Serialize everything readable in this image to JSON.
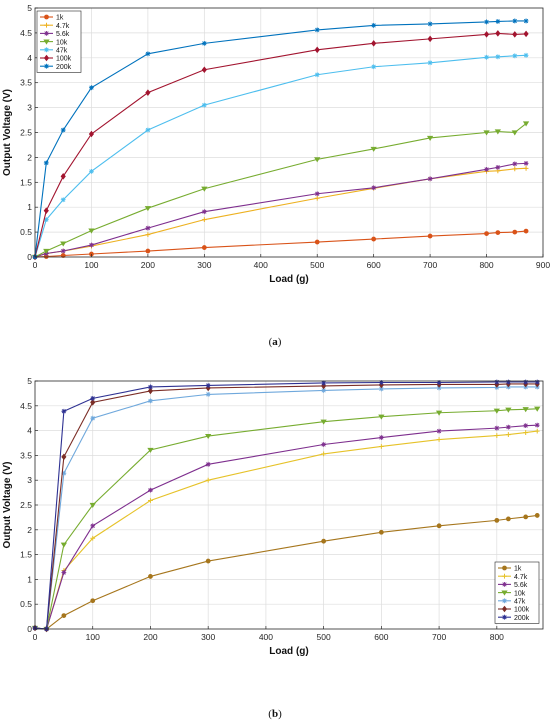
{
  "panels": [
    {
      "label_prefix": "(",
      "label_letter": "a",
      "label_suffix": ")"
    },
    {
      "label_prefix": "(",
      "label_letter": "b",
      "label_suffix": ")"
    }
  ],
  "chart_data": [
    {
      "type": "line",
      "xlabel": "Load (g)",
      "ylabel": "Output Voltage (V)",
      "xlim": [
        0,
        900
      ],
      "ylim": [
        0,
        5
      ],
      "xticks": [
        "0",
        "100",
        "200",
        "300",
        "400",
        "500",
        "600",
        "700",
        "800",
        "900"
      ],
      "yticks": [
        "0",
        "0.5",
        "1",
        "1.5",
        "2",
        "2.5",
        "3",
        "3.5",
        "4",
        "4.5",
        "5"
      ],
      "grid": true,
      "legend_position": "top-left",
      "x": [
        0,
        20,
        50,
        100,
        200,
        300,
        500,
        600,
        700,
        800,
        820,
        850,
        870
      ],
      "series": [
        {
          "name": "1k",
          "color": "#d95319",
          "marker": "circle",
          "values": [
            0,
            0.01,
            0.03,
            0.06,
            0.12,
            0.19,
            0.3,
            0.36,
            0.42,
            0.47,
            0.49,
            0.5,
            0.52
          ]
        },
        {
          "name": "4.7k",
          "color": "#edb120",
          "marker": "plus",
          "values": [
            0,
            0.07,
            0.12,
            0.22,
            0.45,
            0.75,
            1.18,
            1.38,
            1.57,
            1.72,
            1.73,
            1.77,
            1.78
          ]
        },
        {
          "name": "5.6k",
          "color": "#7e2f8e",
          "marker": "asterisk",
          "values": [
            0,
            0.07,
            0.12,
            0.24,
            0.58,
            0.91,
            1.27,
            1.39,
            1.57,
            1.76,
            1.8,
            1.87,
            1.88
          ]
        },
        {
          "name": "10k",
          "color": "#77ac30",
          "marker": "triangle",
          "values": [
            0,
            0.12,
            0.27,
            0.53,
            0.98,
            1.37,
            1.96,
            2.17,
            2.39,
            2.5,
            2.52,
            2.5,
            2.68
          ]
        },
        {
          "name": "47k",
          "color": "#4dbeee",
          "marker": "star",
          "values": [
            0,
            0.75,
            1.15,
            1.72,
            2.55,
            3.05,
            3.66,
            3.82,
            3.9,
            4.01,
            4.02,
            4.04,
            4.05
          ]
        },
        {
          "name": "100k",
          "color": "#a2142f",
          "marker": "diamond",
          "values": [
            0,
            0.93,
            1.62,
            2.47,
            3.3,
            3.76,
            4.16,
            4.29,
            4.38,
            4.47,
            4.49,
            4.47,
            4.48
          ]
        },
        {
          "name": "200k",
          "color": "#0072bd",
          "marker": "star",
          "values": [
            0,
            1.89,
            2.55,
            3.4,
            4.08,
            4.29,
            4.56,
            4.65,
            4.68,
            4.72,
            4.73,
            4.74,
            4.74
          ]
        }
      ]
    },
    {
      "type": "line",
      "xlabel": "Load (g)",
      "ylabel": "Output Voltage (V)",
      "xlim": [
        0,
        880
      ],
      "ylim": [
        0,
        5
      ],
      "xticks": [
        "0",
        "100",
        "200",
        "300",
        "400",
        "500",
        "600",
        "700",
        "800"
      ],
      "yticks": [
        "0",
        "0.5",
        "1",
        "1.5",
        "2",
        "2.5",
        "3",
        "3.5",
        "4",
        "4.5",
        "5"
      ],
      "grid": true,
      "legend_position": "bottom-right",
      "x": [
        0,
        20,
        50,
        100,
        200,
        300,
        500,
        600,
        700,
        800,
        820,
        850,
        870
      ],
      "series": [
        {
          "name": "1k",
          "color": "#a6761d",
          "marker": "circle",
          "values": [
            0.02,
            0,
            0.27,
            0.57,
            1.06,
            1.37,
            1.77,
            1.95,
            2.08,
            2.19,
            2.22,
            2.26,
            2.29
          ]
        },
        {
          "name": "4.7k",
          "color": "#e6c229",
          "marker": "plus",
          "values": [
            0.02,
            0,
            1.18,
            1.83,
            2.59,
            3.0,
            3.53,
            3.68,
            3.82,
            3.9,
            3.92,
            3.96,
            3.99
          ]
        },
        {
          "name": "5.6k",
          "color": "#7e2f8e",
          "marker": "asterisk",
          "values": [
            0.02,
            0,
            1.14,
            2.08,
            2.8,
            3.32,
            3.72,
            3.86,
            3.99,
            4.05,
            4.07,
            4.1,
            4.11
          ]
        },
        {
          "name": "10k",
          "color": "#77ac30",
          "marker": "triangle",
          "values": [
            0.02,
            0,
            1.7,
            2.5,
            3.61,
            3.89,
            4.18,
            4.28,
            4.36,
            4.4,
            4.42,
            4.43,
            4.44
          ]
        },
        {
          "name": "47k",
          "color": "#6fa8dc",
          "marker": "star",
          "values": [
            0.02,
            0,
            3.14,
            4.25,
            4.6,
            4.73,
            4.81,
            4.84,
            4.86,
            4.87,
            4.88,
            4.88,
            4.88
          ]
        },
        {
          "name": "100k",
          "color": "#7b2d26",
          "marker": "diamond",
          "values": [
            0.02,
            0,
            3.47,
            4.57,
            4.8,
            4.86,
            4.9,
            4.92,
            4.93,
            4.93,
            4.94,
            4.94,
            4.94
          ]
        },
        {
          "name": "200k",
          "color": "#2e3192",
          "marker": "star",
          "values": [
            0.02,
            0,
            4.39,
            4.65,
            4.88,
            4.91,
            4.96,
            4.97,
            4.97,
            4.98,
            4.98,
            4.98,
            4.98
          ]
        }
      ]
    }
  ]
}
